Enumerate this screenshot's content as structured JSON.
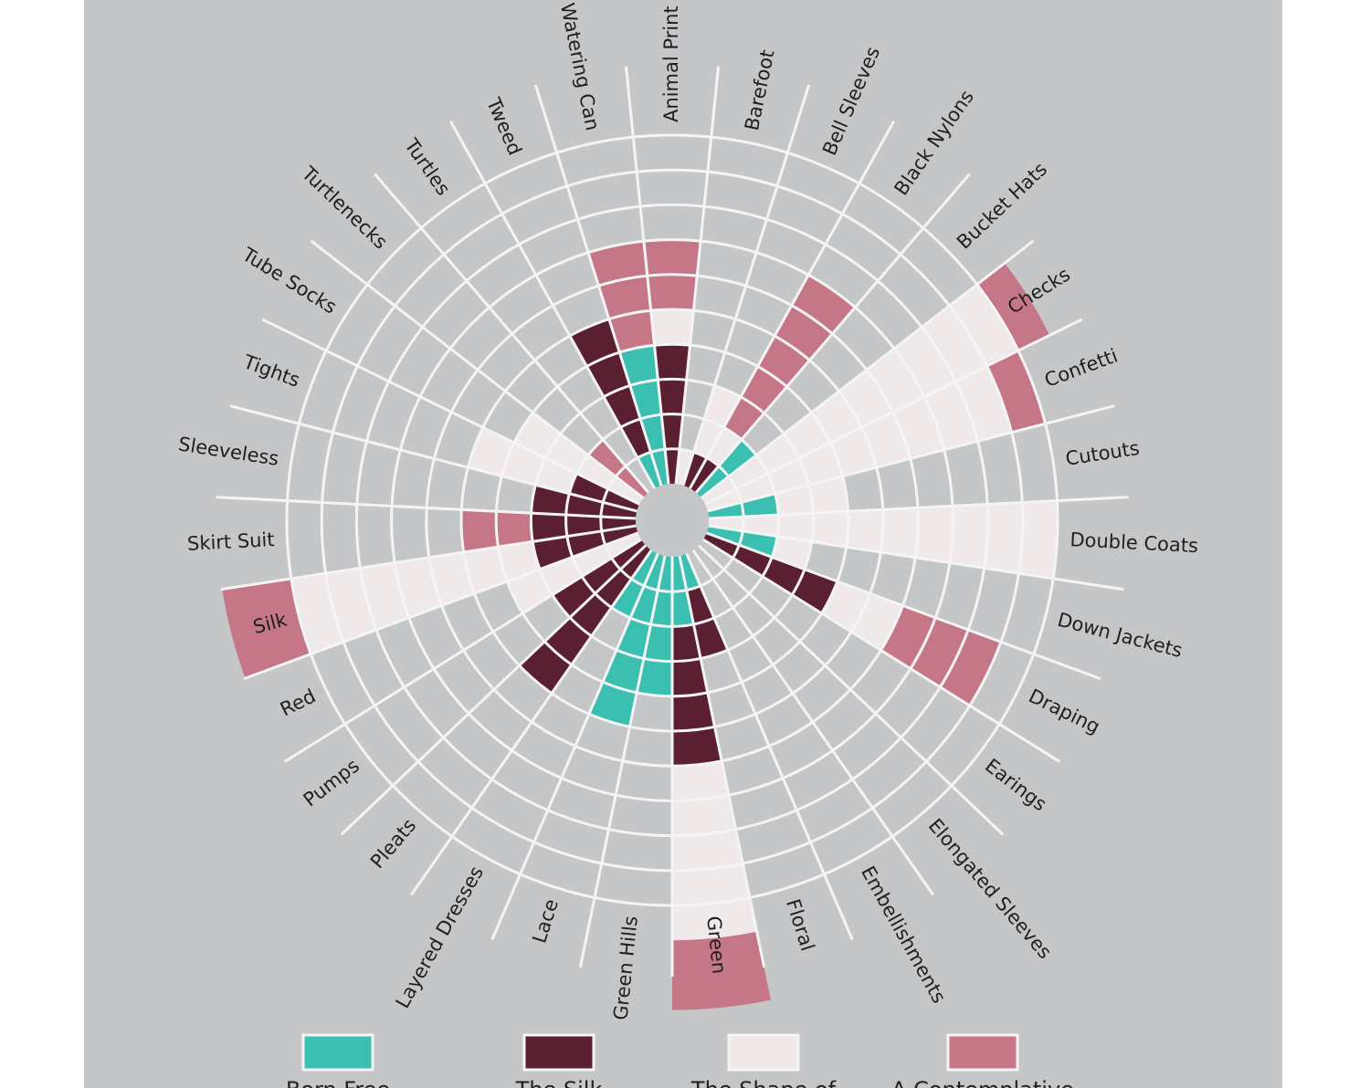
{
  "chart_data": {
    "type": "radial-stacked-bar",
    "title": "",
    "categories": [
      "Animal Print",
      "Barefoot",
      "Bell Sleeves",
      "Black Nylons",
      "Bucket Hats",
      "Checks",
      "Confetti",
      "Cutouts",
      "Double Coats",
      "Down Jackets",
      "Draping",
      "Earings",
      "Elongated Sleeves",
      "Embellishments",
      "Floral",
      "Green",
      "Green Hills",
      "Lace",
      "Layered Dresses",
      "Pleats",
      "Pumps",
      "Red",
      "Silk",
      "Skirt Suit",
      "Sleeveless",
      "Tights",
      "Tube Socks",
      "Turtlenecks",
      "Turtles",
      "Tweed",
      "Watering Can"
    ],
    "rings": 10,
    "series": [
      {
        "name": "Born Free",
        "color": "#3bbfb1",
        "values": [
          0,
          0,
          0,
          0,
          2,
          0,
          0,
          2,
          0,
          2,
          0,
          0,
          0,
          0,
          1,
          2,
          4,
          5,
          2,
          0,
          0,
          0,
          0,
          0,
          0,
          0,
          0,
          0,
          0,
          1,
          4
        ]
      },
      {
        "name": "The Silk",
        "color": "#5a1f30",
        "values": [
          4,
          0,
          1,
          1,
          0,
          0,
          0,
          0,
          0,
          0,
          4,
          0,
          0,
          0,
          2,
          4,
          0,
          0,
          0,
          5,
          3,
          0,
          3,
          3,
          3,
          2,
          0,
          0,
          0,
          4,
          0
        ]
      },
      {
        "name": "The Shape of",
        "color": "#f0e9ea",
        "values": [
          1,
          1,
          2,
          1,
          0,
          10,
          9,
          2,
          10,
          1,
          2,
          0,
          0,
          0,
          0,
          5,
          0,
          0,
          0,
          0,
          0,
          4,
          7,
          0,
          0,
          3,
          4,
          0,
          0,
          0,
          0
        ]
      },
      {
        "name": "A Contemplative",
        "color": "#c57788",
        "values": [
          2,
          0,
          0,
          5,
          0,
          1,
          1,
          0,
          0,
          0,
          3,
          0,
          0,
          0,
          0,
          2,
          0,
          0,
          0,
          0,
          0,
          0,
          2,
          2,
          0,
          0,
          0,
          2,
          0,
          0,
          3
        ]
      }
    ],
    "legend_position": "bottom"
  }
}
